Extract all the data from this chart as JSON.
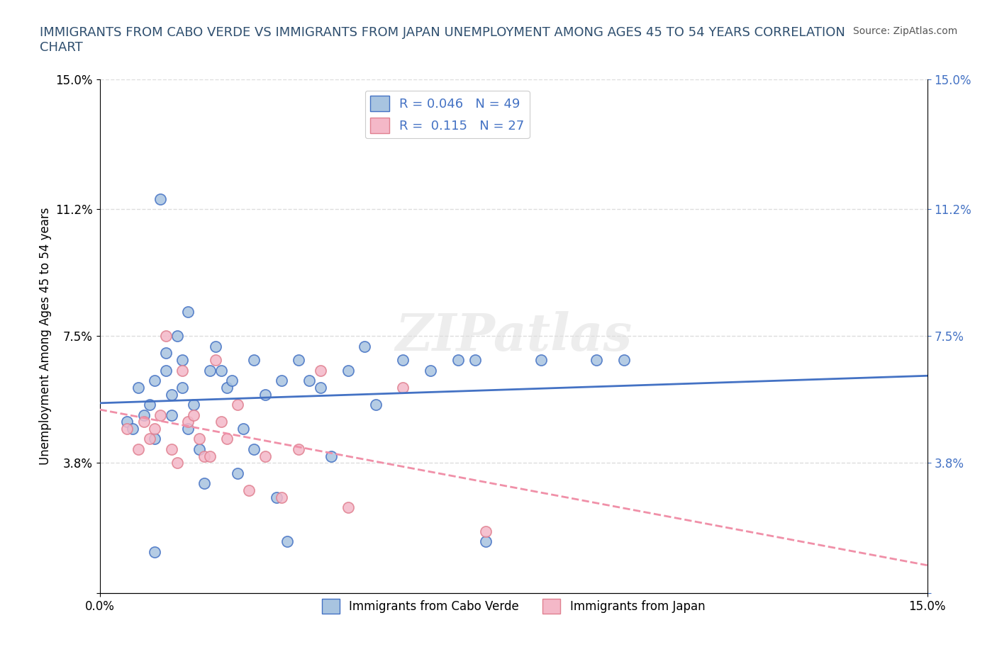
{
  "title": "IMMIGRANTS FROM CABO VERDE VS IMMIGRANTS FROM JAPAN UNEMPLOYMENT AMONG AGES 45 TO 54 YEARS CORRELATION\nCHART",
  "source_text": "Source: ZipAtlas.com",
  "xlabel": "",
  "ylabel": "Unemployment Among Ages 45 to 54 years",
  "xlim": [
    0.0,
    0.15
  ],
  "ylim": [
    0.0,
    0.15
  ],
  "xticks": [
    0.0,
    0.03,
    0.06,
    0.09,
    0.12,
    0.15
  ],
  "xticklabels": [
    "0.0%",
    "",
    "",
    "",
    "",
    "15.0%"
  ],
  "ytick_positions": [
    0.0,
    0.038,
    0.075,
    0.112,
    0.15
  ],
  "ytick_labels": [
    "",
    "3.8%",
    "7.5%",
    "11.2%",
    "15.0%"
  ],
  "cabo_verde_color": "#a8c4e0",
  "japan_color": "#f4b8c8",
  "cabo_verde_line_color": "#4472c4",
  "japan_line_color": "#f4a0b8",
  "cabo_verde_R": 0.046,
  "cabo_verde_N": 49,
  "japan_R": 0.115,
  "japan_N": 27,
  "cabo_verde_x": [
    0.005,
    0.006,
    0.007,
    0.008,
    0.009,
    0.01,
    0.01,
    0.011,
    0.012,
    0.012,
    0.013,
    0.013,
    0.014,
    0.015,
    0.015,
    0.016,
    0.016,
    0.017,
    0.018,
    0.019,
    0.02,
    0.021,
    0.022,
    0.023,
    0.024,
    0.025,
    0.026,
    0.028,
    0.028,
    0.03,
    0.032,
    0.033,
    0.034,
    0.036,
    0.038,
    0.04,
    0.042,
    0.045,
    0.048,
    0.05,
    0.055,
    0.06,
    0.065,
    0.068,
    0.07,
    0.08,
    0.09,
    0.095,
    0.01
  ],
  "cabo_verde_y": [
    0.05,
    0.048,
    0.06,
    0.052,
    0.055,
    0.062,
    0.045,
    0.115,
    0.065,
    0.07,
    0.058,
    0.052,
    0.075,
    0.068,
    0.06,
    0.082,
    0.048,
    0.055,
    0.042,
    0.032,
    0.065,
    0.072,
    0.065,
    0.06,
    0.062,
    0.035,
    0.048,
    0.068,
    0.042,
    0.058,
    0.028,
    0.062,
    0.015,
    0.068,
    0.062,
    0.06,
    0.04,
    0.065,
    0.072,
    0.055,
    0.068,
    0.065,
    0.068,
    0.068,
    0.015,
    0.068,
    0.068,
    0.068,
    0.012
  ],
  "japan_x": [
    0.005,
    0.007,
    0.008,
    0.009,
    0.01,
    0.011,
    0.012,
    0.013,
    0.014,
    0.015,
    0.016,
    0.017,
    0.018,
    0.019,
    0.02,
    0.021,
    0.022,
    0.023,
    0.025,
    0.027,
    0.03,
    0.033,
    0.036,
    0.04,
    0.045,
    0.055,
    0.07
  ],
  "japan_y": [
    0.048,
    0.042,
    0.05,
    0.045,
    0.048,
    0.052,
    0.075,
    0.042,
    0.038,
    0.065,
    0.05,
    0.052,
    0.045,
    0.04,
    0.04,
    0.068,
    0.05,
    0.045,
    0.055,
    0.03,
    0.04,
    0.028,
    0.042,
    0.065,
    0.025,
    0.06,
    0.018
  ],
  "watermark": "ZIPatlas",
  "grid_color": "#dddddd",
  "bg_color": "#ffffff"
}
